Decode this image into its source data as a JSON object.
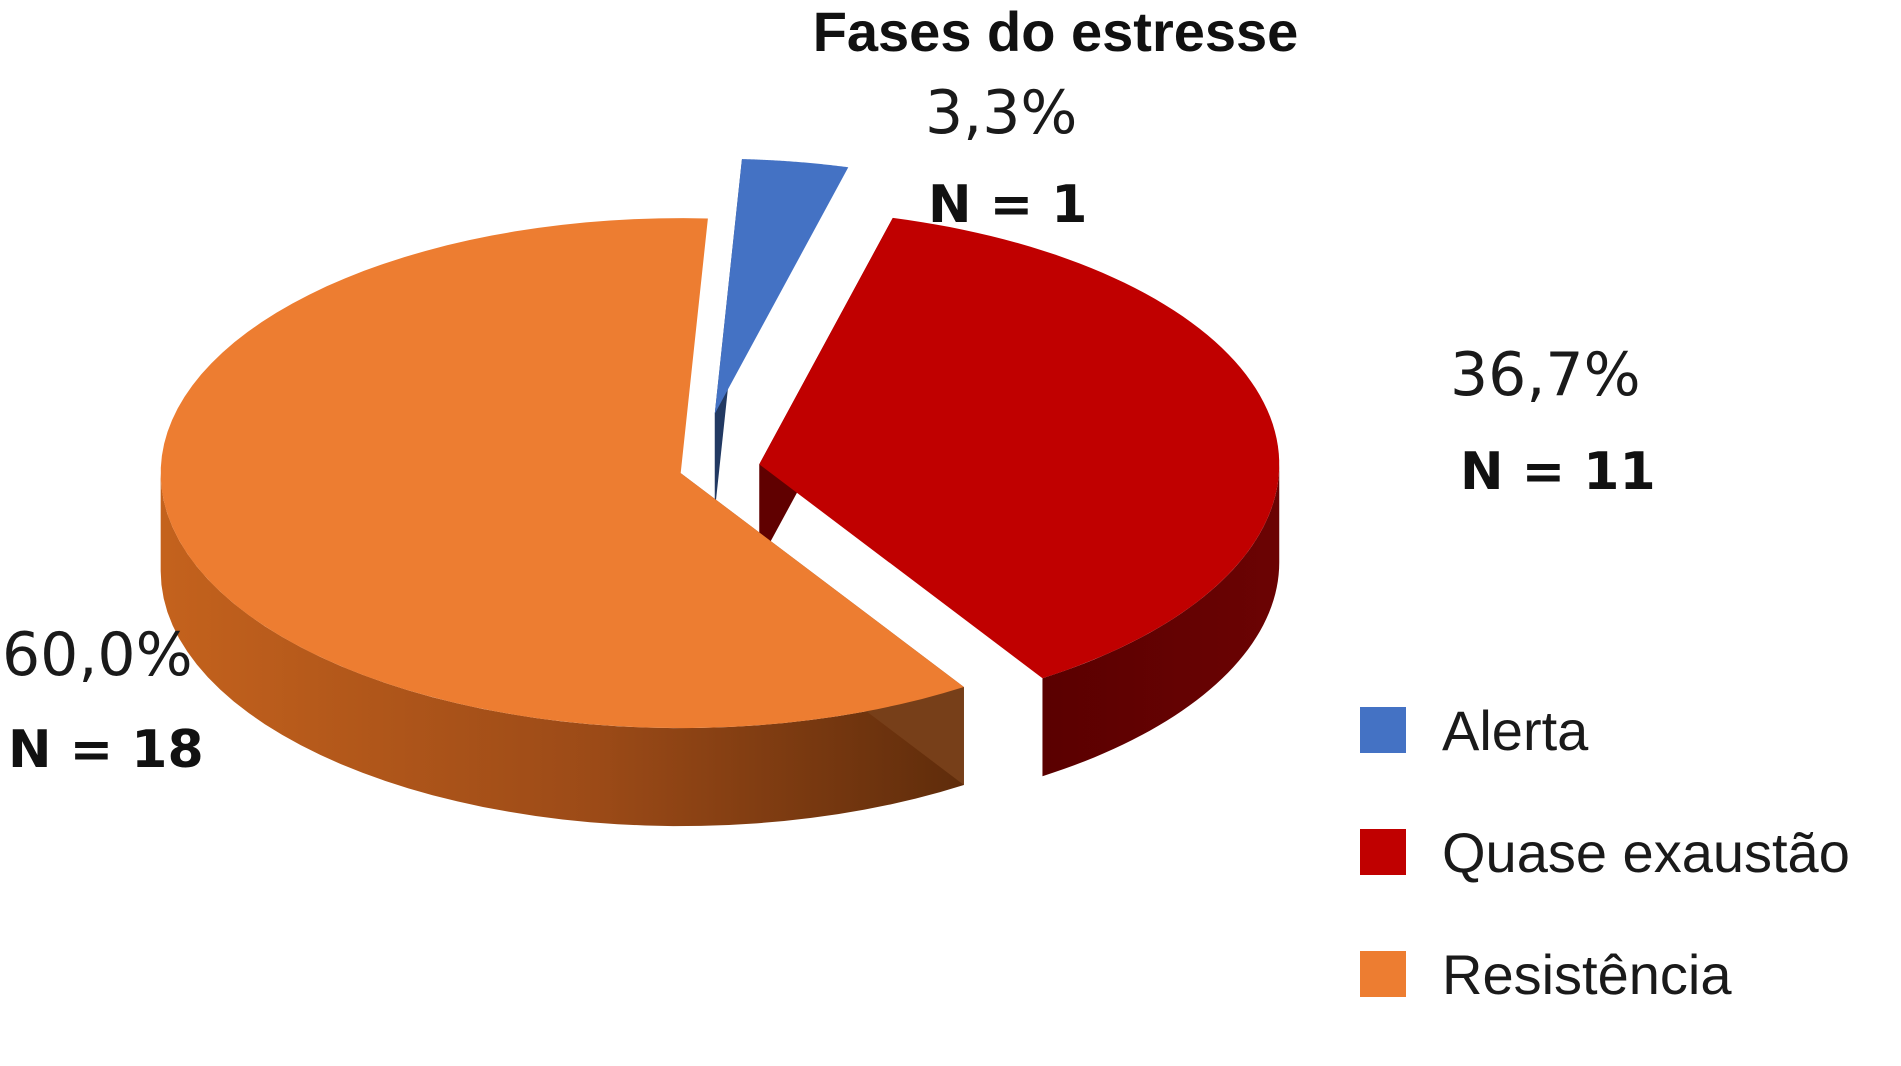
{
  "chart_data": {
    "type": "pie",
    "title": "Fases do estresse",
    "slices": [
      {
        "name": "Alerta",
        "percent": 3.3,
        "percent_label": "3,3%",
        "n_label": "N = 1",
        "color": "#4472C4"
      },
      {
        "name": "Quase exaustão",
        "percent": 36.7,
        "percent_label": "36,7%",
        "n_label": "N = 11",
        "color": "#C00000"
      },
      {
        "name": "Resistência",
        "percent": 60.0,
        "percent_label": "60,0%",
        "n_label": "N = 18",
        "color": "#ED7D31"
      }
    ],
    "legend_position": "bottom-right",
    "style": "3D exploded pie"
  }
}
